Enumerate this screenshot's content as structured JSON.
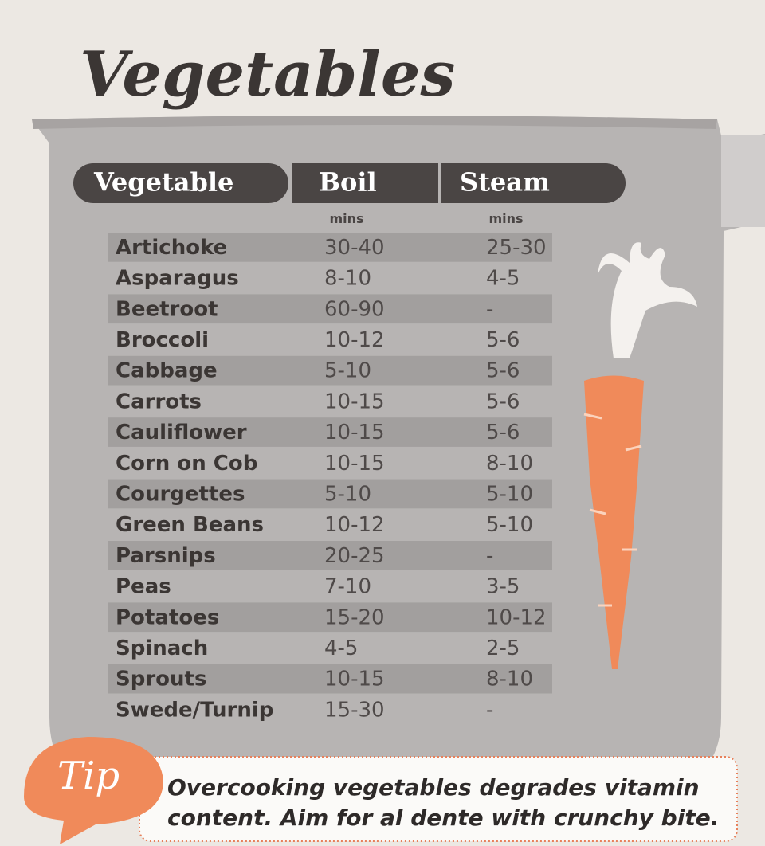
{
  "title": "Vegetables",
  "table": {
    "header": [
      "Vegetable",
      "Boil",
      "Steam"
    ],
    "units": [
      "mins",
      "mins"
    ],
    "rows": [
      [
        "Artichoke",
        "30-40",
        "25-30"
      ],
      [
        "Asparagus",
        "8-10",
        "4-5"
      ],
      [
        "Beetroot",
        "60-90",
        "-"
      ],
      [
        "Broccoli",
        "10-12",
        "5-6"
      ],
      [
        "Cabbage",
        "5-10",
        "5-6"
      ],
      [
        "Carrots",
        "10-15",
        "5-6"
      ],
      [
        "Cauliflower",
        "10-15",
        "5-6"
      ],
      [
        "Corn on Cob",
        "10-15",
        "8-10"
      ],
      [
        "Courgettes",
        "5-10",
        "5-10"
      ],
      [
        "Green Beans",
        "10-12",
        "5-10"
      ],
      [
        "Parsnips",
        "20-25",
        "-"
      ],
      [
        "Peas",
        "7-10",
        "3-5"
      ],
      [
        "Potatoes",
        "15-20",
        "10-12"
      ],
      [
        "Spinach",
        "4-5",
        "2-5"
      ],
      [
        "Sprouts",
        "10-15",
        "8-10"
      ],
      [
        "Swede/Turnip",
        "15-30",
        "-"
      ]
    ]
  },
  "tip": {
    "label": "Tip",
    "lines": [
      "Overcooking vegetables degrades vitamin",
      "content. Aim for al dente with crunchy bite."
    ]
  }
}
